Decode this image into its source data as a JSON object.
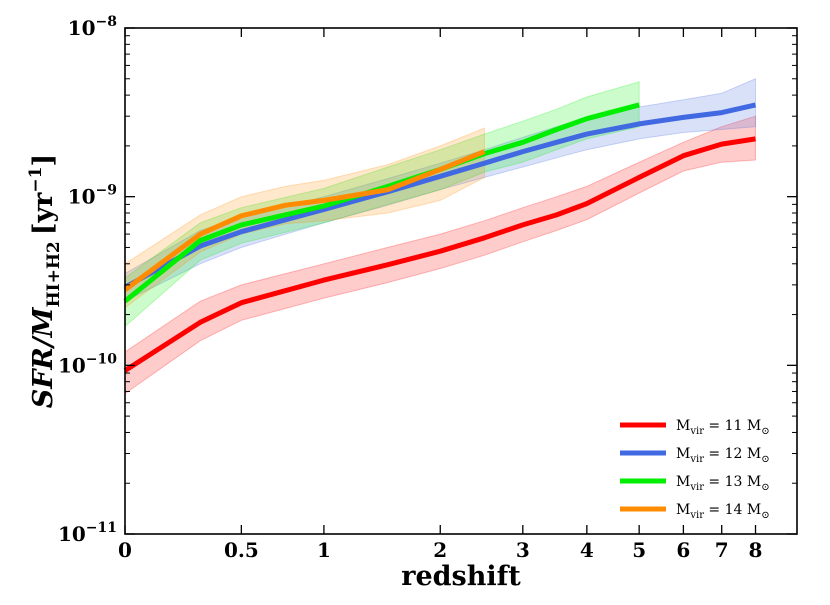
{
  "chart_data": {
    "type": "line",
    "title": "",
    "xlabel": "redshift",
    "ylabel": "SFR/M_HI+H2 [yr^-1]",
    "ylabel_parts": {
      "main": "SFR/M",
      "sub": "HI+H2",
      "unit_open": "[yr",
      "unit_exp": "−1",
      "unit_close": "]"
    },
    "x_scale": "log(1+z)",
    "y_scale": "log",
    "xlim": [
      0,
      9.4
    ],
    "ylim": [
      1e-11,
      1e-08
    ],
    "x_ticks": [
      0,
      0.5,
      1,
      2,
      3,
      4,
      5,
      6,
      7,
      8
    ],
    "x_tick_labels": [
      "0",
      "0.5",
      "1",
      "2",
      "3",
      "4",
      "5",
      "6",
      "7",
      "8"
    ],
    "y_ticks": [
      {
        "value": 1e-11,
        "mantissa": "10",
        "exponent": "−11"
      },
      {
        "value": 1e-10,
        "mantissa": "10",
        "exponent": "−10"
      },
      {
        "value": 1e-09,
        "mantissa": "10",
        "exponent": "−9"
      },
      {
        "value": 1e-08,
        "mantissa": "10",
        "exponent": "−8"
      }
    ],
    "legend_position": "lower-right",
    "series": [
      {
        "name": "M_vir = 11 M_sun",
        "label_main": "M",
        "label_sub": "vir",
        "label_value": " = 11 M",
        "label_sun": "⊙",
        "color": "#ff0000",
        "x": [
          0,
          0.3,
          0.5,
          1,
          1.5,
          2,
          2.5,
          3,
          3.5,
          4,
          5,
          6,
          7,
          8
        ],
        "y": [
          9.3e-11,
          1.8e-10,
          2.35e-10,
          3.2e-10,
          3.95e-10,
          4.75e-10,
          5.7e-10,
          6.8e-10,
          7.8e-10,
          9.1e-10,
          1.3e-09,
          1.75e-09,
          2.05e-09,
          2.2e-09
        ],
        "y_low": [
          6.8e-11,
          1.4e-10,
          1.85e-10,
          2.5e-10,
          3.1e-10,
          3.75e-10,
          4.5e-10,
          5.4e-10,
          6.3e-10,
          7.3e-10,
          1.05e-09,
          1.42e-09,
          1.6e-09,
          1.65e-09
        ],
        "y_high": [
          1.2e-10,
          2.4e-10,
          3e-10,
          4e-10,
          5e-10,
          6e-10,
          7.2e-10,
          8.6e-10,
          1e-09,
          1.15e-09,
          1.6e-09,
          2.1e-09,
          2.6e-09,
          3e-09
        ]
      },
      {
        "name": "M_vir = 12 M_sun",
        "label_main": "M",
        "label_sub": "vir",
        "label_value": " = 12 M",
        "label_sun": "⊙",
        "color": "#4169e1",
        "x": [
          0,
          0.3,
          0.5,
          1,
          1.5,
          2,
          2.5,
          3,
          3.5,
          4,
          5,
          6,
          7,
          8
        ],
        "y": [
          2.9e-10,
          5.1e-10,
          6.2e-10,
          8.4e-10,
          1.07e-09,
          1.32e-09,
          1.58e-09,
          1.85e-09,
          2.1e-09,
          2.35e-09,
          2.7e-09,
          2.95e-09,
          3.15e-09,
          3.5e-09
        ],
        "y_low": [
          2.4e-10,
          4e-10,
          5e-10,
          7e-10,
          8.9e-10,
          1.1e-09,
          1.3e-09,
          1.5e-09,
          1.7e-09,
          1.9e-09,
          2.2e-09,
          2.4e-09,
          2.5e-09,
          2.6e-09
        ],
        "y_high": [
          3.5e-10,
          6.3e-10,
          7.6e-10,
          1e-09,
          1.28e-09,
          1.58e-09,
          1.9e-09,
          2.25e-09,
          2.6e-09,
          2.95e-09,
          3.4e-09,
          3.75e-09,
          4.1e-09,
          5e-09
        ]
      },
      {
        "name": "M_vir = 13 M_sun",
        "label_main": "M",
        "label_sub": "vir",
        "label_value": " = 13 M",
        "label_sun": "⊙",
        "color": "#00ee00",
        "x": [
          0,
          0.3,
          0.5,
          1,
          1.5,
          2,
          2.5,
          3,
          3.5,
          4,
          5
        ],
        "y": [
          2.4e-10,
          5.5e-10,
          6.8e-10,
          8.8e-10,
          1.15e-09,
          1.45e-09,
          1.8e-09,
          2.1e-09,
          2.5e-09,
          2.9e-09,
          3.5e-09
        ],
        "y_low": [
          1.7e-10,
          4.2e-10,
          5.3e-10,
          7e-10,
          9e-10,
          1.1e-09,
          1.4e-09,
          1.6e-09,
          1.9e-09,
          2.2e-09,
          2.6e-09
        ],
        "y_high": [
          3.3e-10,
          7e-10,
          8.6e-10,
          1.12e-09,
          1.5e-09,
          1.9e-09,
          2.35e-09,
          2.8e-09,
          3.3e-09,
          3.9e-09,
          4.8e-09
        ]
      },
      {
        "name": "M_vir = 14 M_sun",
        "label_main": "M",
        "label_sub": "vir",
        "label_value": " = 14 M",
        "label_sun": "⊙",
        "color": "#ff8c00",
        "x": [
          0,
          0.3,
          0.5,
          0.75,
          1,
          1.5,
          2,
          2.5
        ],
        "y": [
          2.8e-10,
          6e-10,
          7.7e-10,
          8.9e-10,
          9.5e-10,
          1.1e-09,
          1.45e-09,
          1.85e-09
        ],
        "y_low": [
          2.2e-10,
          4.7e-10,
          6e-10,
          6.9e-10,
          7.2e-10,
          8e-10,
          9.5e-10,
          1.3e-09
        ],
        "y_high": [
          4e-10,
          7.8e-10,
          1e-09,
          1.15e-09,
          1.25e-09,
          1.55e-09,
          2e-09,
          2.55e-09
        ]
      }
    ]
  }
}
